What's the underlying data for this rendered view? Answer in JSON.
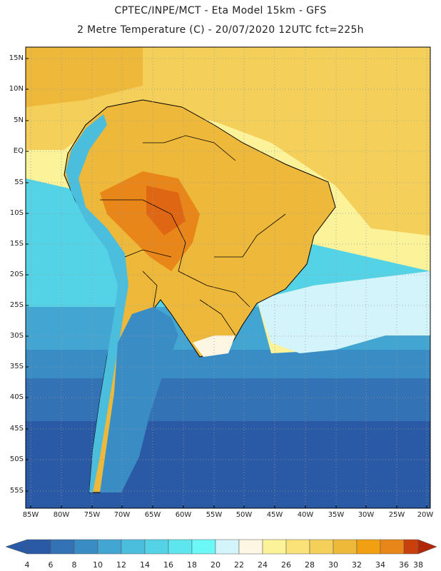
{
  "header": {
    "line1": "CPTEC/INPE/MCT -  Eta Model 15km - GFS",
    "line2": "2 Metre Temperature (C) - 20/07/2020 12UTC fct=225h"
  },
  "axes": {
    "latitude_labels": [
      "15N",
      "10N",
      "5N",
      "EQ",
      "5S",
      "10S",
      "15S",
      "20S",
      "25S",
      "30S",
      "35S",
      "40S",
      "45S",
      "50S",
      "55S"
    ],
    "longitude_labels": [
      "85W",
      "80W",
      "75W",
      "70W",
      "65W",
      "60W",
      "55W",
      "50W",
      "45W",
      "40W",
      "35W",
      "30W",
      "25W",
      "20W"
    ]
  },
  "colorbar": {
    "labels": [
      "4",
      "6",
      "8",
      "10",
      "12",
      "14",
      "16",
      "18",
      "20",
      "22",
      "24",
      "26",
      "28",
      "30",
      "32",
      "34",
      "36",
      "38"
    ],
    "colors": [
      "#2a5aa6",
      "#3272b5",
      "#3a8cc4",
      "#43a6d2",
      "#4cbedd",
      "#55d3e6",
      "#5ee6ee",
      "#6df8f8",
      "#d4f4fb",
      "#fdf6e2",
      "#fbf29a",
      "#fae278",
      "#f4cf5a",
      "#eeb83a",
      "#f0a010",
      "#e8861a",
      "#df6714",
      "#c8400c",
      "#b02808"
    ]
  },
  "map": {
    "colors": {
      "ocean_deep": "#2a5aa6",
      "ocean_mid": "#3a8cc4",
      "ocean_warm": "#55d3e6",
      "ocean_pale": "#d4f4fb",
      "atlantic_north": "#f4cf5a",
      "land_hot": "#eeb83a",
      "land_very_hot": "#e8861a",
      "andes": "#4cbedd",
      "coast": "#000000",
      "grid": "#9a9a9a"
    }
  }
}
